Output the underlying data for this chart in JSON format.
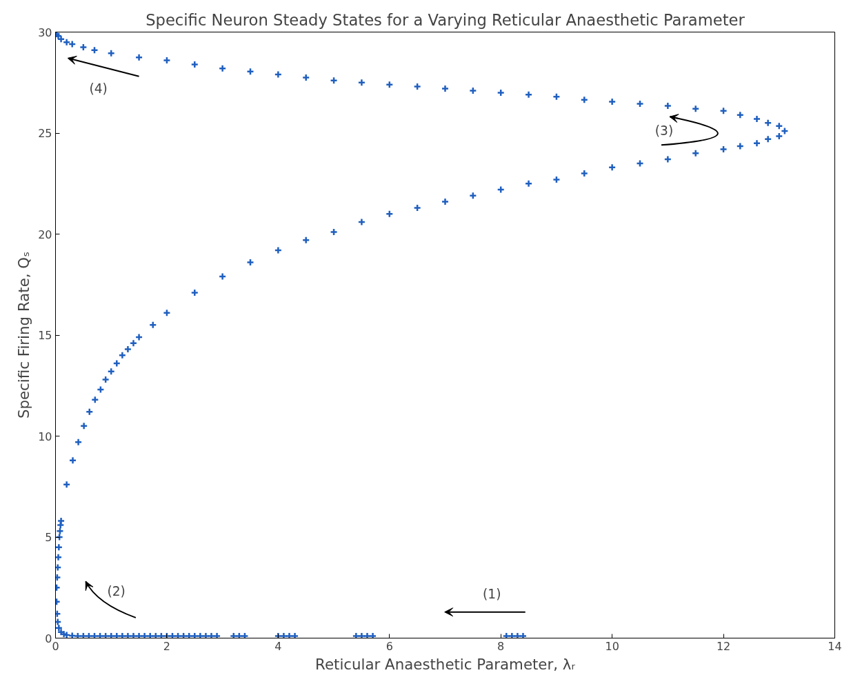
{
  "chart_data": {
    "type": "scatter",
    "title": "Specific Neuron Steady States for a Varying Reticular Anaesthetic Parameter",
    "xlabel": "Reticular Anaesthetic Parameter, λᵣ",
    "ylabel": "Specific Firing Rate, Qₛ",
    "marker": "cross",
    "grid": false,
    "xlim": [
      0,
      14
    ],
    "xticks": [
      0,
      2,
      4,
      6,
      8,
      10,
      12,
      14
    ],
    "ylim": [
      0,
      30
    ],
    "yticks": [
      0,
      5,
      10,
      15,
      20,
      25,
      30
    ],
    "series": [
      {
        "color": "#1f5fbf",
        "x": [
          8.4,
          8.3,
          8.2,
          8.1,
          5.7,
          5.6,
          5.5,
          5.4,
          4.3,
          4.2,
          4.1,
          4.0,
          3.4,
          3.3,
          3.2,
          2.9,
          2.8,
          2.7,
          2.6,
          2.5,
          2.4,
          2.3,
          2.2,
          2.1,
          2.0,
          1.9,
          1.8,
          1.7,
          1.6,
          1.5,
          1.4,
          1.3,
          1.2,
          1.1,
          1.0,
          0.9,
          0.8,
          0.7,
          0.6,
          0.5,
          0.4,
          0.3,
          0.2,
          0.15,
          0.1,
          0.06,
          0.04,
          0.03,
          0.02,
          0.02,
          0.03,
          0.04,
          0.05,
          0.06,
          0.07,
          0.08,
          0.09,
          0.1,
          0.2,
          0.31,
          0.41,
          0.51,
          0.61,
          0.71,
          0.81,
          0.9,
          1.0,
          1.1,
          1.2,
          1.3,
          1.4,
          1.5,
          1.75,
          2.0,
          2.5,
          3.0,
          3.5,
          4.0,
          4.5,
          5.0,
          5.5,
          6.0,
          6.5,
          7.0,
          7.5,
          8.0,
          8.5,
          9.0,
          9.5,
          10.0,
          10.5,
          11.0,
          11.5,
          12.0,
          12.3,
          12.6,
          12.8,
          13.0,
          13.1,
          13.0,
          12.8,
          12.6,
          12.3,
          12.0,
          11.5,
          11.0,
          10.5,
          10.0,
          9.5,
          9.0,
          8.5,
          8.0,
          7.5,
          7.0,
          6.5,
          6.0,
          5.5,
          5.0,
          4.5,
          4.0,
          3.5,
          3.0,
          2.5,
          2.0,
          1.5,
          1.0,
          0.7,
          0.5,
          0.3,
          0.2,
          0.1,
          0.05,
          0.02
        ],
        "values": [
          0.1,
          0.1,
          0.1,
          0.1,
          0.1,
          0.1,
          0.1,
          0.1,
          0.1,
          0.1,
          0.1,
          0.1,
          0.1,
          0.1,
          0.1,
          0.1,
          0.1,
          0.1,
          0.1,
          0.1,
          0.1,
          0.1,
          0.1,
          0.1,
          0.1,
          0.1,
          0.1,
          0.1,
          0.1,
          0.1,
          0.1,
          0.1,
          0.1,
          0.1,
          0.1,
          0.1,
          0.1,
          0.1,
          0.1,
          0.1,
          0.1,
          0.12,
          0.15,
          0.2,
          0.3,
          0.5,
          0.8,
          1.2,
          1.8,
          2.5,
          3.0,
          3.5,
          4.0,
          4.5,
          5.0,
          5.3,
          5.6,
          5.8,
          7.6,
          8.8,
          9.7,
          10.5,
          11.2,
          11.8,
          12.3,
          12.8,
          13.2,
          13.6,
          14.0,
          14.3,
          14.6,
          14.9,
          15.5,
          16.1,
          17.1,
          17.9,
          18.6,
          19.2,
          19.7,
          20.1,
          20.6,
          21.0,
          21.3,
          21.6,
          21.9,
          22.2,
          22.5,
          22.7,
          23.0,
          23.3,
          23.5,
          23.7,
          24.0,
          24.2,
          24.35,
          24.5,
          24.7,
          24.85,
          25.1,
          25.35,
          25.5,
          25.7,
          25.9,
          26.1,
          26.2,
          26.35,
          26.45,
          26.55,
          26.65,
          26.8,
          26.9,
          27.0,
          27.1,
          27.2,
          27.3,
          27.4,
          27.5,
          27.6,
          27.75,
          27.9,
          28.05,
          28.2,
          28.4,
          28.6,
          28.75,
          28.95,
          29.1,
          29.25,
          29.4,
          29.5,
          29.65,
          29.8,
          29.9
        ]
      }
    ],
    "annotations": [
      "(1)",
      "(2)",
      "(3)",
      "(4)"
    ]
  }
}
